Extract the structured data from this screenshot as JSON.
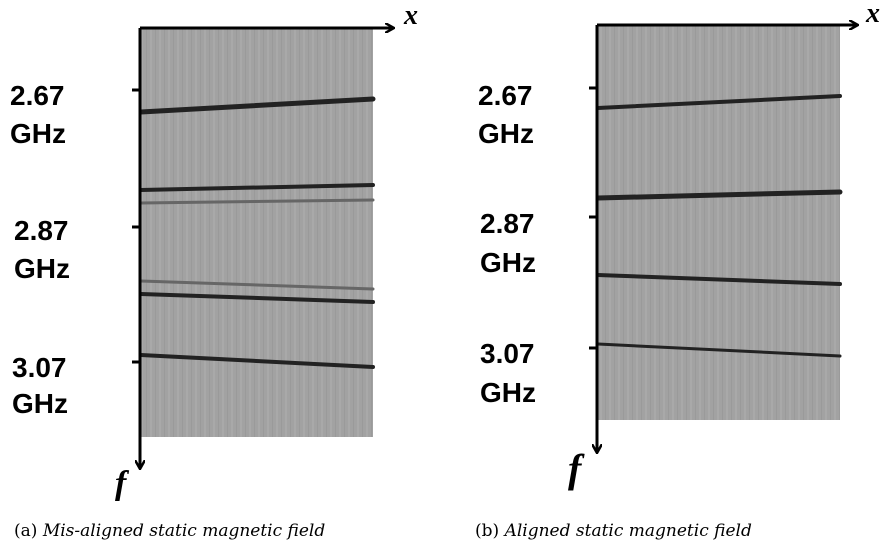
{
  "panels": [
    {
      "x_axis": "x",
      "f_axis": "f",
      "ticks": [
        {
          "value": "2.67",
          "unit": "GHz"
        },
        {
          "value": "2.87",
          "unit": "GHz"
        },
        {
          "value": "3.07",
          "unit": "GHz"
        }
      ],
      "caption": {
        "label": "(a)",
        "text": "Mis-aligned static magnetic field"
      }
    },
    {
      "x_axis": "x",
      "f_axis": "f",
      "ticks": [
        {
          "value": "2.67",
          "unit": "GHz"
        },
        {
          "value": "2.87",
          "unit": "GHz"
        },
        {
          "value": "3.07",
          "unit": "GHz"
        }
      ],
      "caption": {
        "label": "(b)",
        "text": "Aligned static magnetic field"
      }
    }
  ]
}
